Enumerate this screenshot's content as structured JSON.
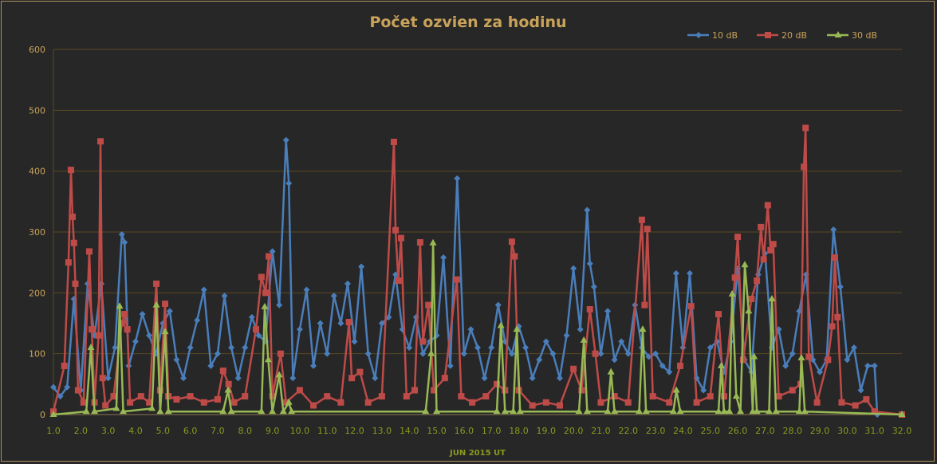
{
  "chart_data": {
    "type": "line",
    "title": "Počet ozvien za hodinu",
    "xlabel": "JUN 2015 UT",
    "ylabel": "",
    "xlim": [
      1.0,
      32.0
    ],
    "ylim": [
      0,
      600
    ],
    "yticks": [
      "0",
      "100",
      "200",
      "300",
      "400",
      "500",
      "600"
    ],
    "xticks": [
      "1.0",
      "2.0",
      "3.0",
      "4.0",
      "5.0",
      "6.0",
      "7.0",
      "8.0",
      "9.0",
      "10.0",
      "11.0",
      "12.0",
      "13.0",
      "14.0",
      "15.0",
      "16.0",
      "17.0",
      "18.0",
      "19.0",
      "20.0",
      "21.0",
      "22.0",
      "23.0",
      "24.0",
      "25.0",
      "26.0",
      "27.0",
      "28.0",
      "29.0",
      "30.0",
      "31.0",
      "32.0"
    ],
    "grid": "horizontal",
    "legend_position": "top-right",
    "series": [
      {
        "name": "10 dB",
        "color": "#4a7ebb",
        "marker": "diamond",
        "points": [
          [
            1.0,
            45
          ],
          [
            1.25,
            30
          ],
          [
            1.5,
            45
          ],
          [
            1.75,
            190
          ],
          [
            2.0,
            40
          ],
          [
            2.25,
            215
          ],
          [
            2.5,
            130
          ],
          [
            2.75,
            215
          ],
          [
            3.0,
            60
          ],
          [
            3.25,
            110
          ],
          [
            3.5,
            296
          ],
          [
            3.6,
            283
          ],
          [
            3.75,
            80
          ],
          [
            4.0,
            120
          ],
          [
            4.25,
            165
          ],
          [
            4.5,
            130
          ],
          [
            4.75,
            100
          ],
          [
            5.0,
            150
          ],
          [
            5.25,
            170
          ],
          [
            5.5,
            90
          ],
          [
            5.75,
            60
          ],
          [
            6.0,
            110
          ],
          [
            6.25,
            155
          ],
          [
            6.5,
            205
          ],
          [
            6.75,
            80
          ],
          [
            7.0,
            100
          ],
          [
            7.25,
            195
          ],
          [
            7.5,
            110
          ],
          [
            7.75,
            60
          ],
          [
            8.0,
            110
          ],
          [
            8.25,
            160
          ],
          [
            8.5,
            130
          ],
          [
            8.75,
            120
          ],
          [
            9.0,
            268
          ],
          [
            9.25,
            180
          ],
          [
            9.5,
            451
          ],
          [
            9.6,
            380
          ],
          [
            9.75,
            60
          ],
          [
            10.0,
            140
          ],
          [
            10.25,
            205
          ],
          [
            10.5,
            80
          ],
          [
            10.75,
            150
          ],
          [
            11.0,
            100
          ],
          [
            11.25,
            195
          ],
          [
            11.5,
            150
          ],
          [
            11.75,
            215
          ],
          [
            12.0,
            120
          ],
          [
            12.25,
            243
          ],
          [
            12.5,
            100
          ],
          [
            12.75,
            60
          ],
          [
            13.0,
            150
          ],
          [
            13.25,
            160
          ],
          [
            13.5,
            230
          ],
          [
            13.75,
            140
          ],
          [
            14.0,
            110
          ],
          [
            14.25,
            160
          ],
          [
            14.5,
            100
          ],
          [
            14.75,
            120
          ],
          [
            15.0,
            130
          ],
          [
            15.25,
            258
          ],
          [
            15.5,
            80
          ],
          [
            15.75,
            388
          ],
          [
            16.0,
            100
          ],
          [
            16.25,
            140
          ],
          [
            16.5,
            110
          ],
          [
            16.75,
            60
          ],
          [
            17.0,
            110
          ],
          [
            17.25,
            180
          ],
          [
            17.5,
            120
          ],
          [
            17.75,
            100
          ],
          [
            18.0,
            145
          ],
          [
            18.25,
            110
          ],
          [
            18.5,
            60
          ],
          [
            18.75,
            90
          ],
          [
            19.0,
            120
          ],
          [
            19.25,
            100
          ],
          [
            19.5,
            60
          ],
          [
            19.75,
            130
          ],
          [
            20.0,
            240
          ],
          [
            20.25,
            140
          ],
          [
            20.5,
            336
          ],
          [
            20.6,
            248
          ],
          [
            20.75,
            210
          ],
          [
            21.0,
            100
          ],
          [
            21.25,
            170
          ],
          [
            21.5,
            90
          ],
          [
            21.75,
            120
          ],
          [
            22.0,
            100
          ],
          [
            22.25,
            180
          ],
          [
            22.5,
            110
          ],
          [
            22.75,
            95
          ],
          [
            23.0,
            100
          ],
          [
            23.25,
            80
          ],
          [
            23.5,
            70
          ],
          [
            23.75,
            232
          ],
          [
            24.0,
            110
          ],
          [
            24.25,
            232
          ],
          [
            24.5,
            60
          ],
          [
            24.75,
            40
          ],
          [
            25.0,
            110
          ],
          [
            25.25,
            120
          ],
          [
            25.5,
            70
          ],
          [
            25.75,
            120
          ],
          [
            26.0,
            240
          ],
          [
            26.25,
            90
          ],
          [
            26.5,
            70
          ],
          [
            26.75,
            230
          ],
          [
            27.0,
            265
          ],
          [
            27.25,
            110
          ],
          [
            27.5,
            140
          ],
          [
            27.75,
            80
          ],
          [
            28.0,
            100
          ],
          [
            28.25,
            170
          ],
          [
            28.5,
            230
          ],
          [
            28.75,
            90
          ],
          [
            29.0,
            70
          ],
          [
            29.25,
            90
          ],
          [
            29.5,
            304
          ],
          [
            29.75,
            210
          ],
          [
            30.0,
            90
          ],
          [
            30.25,
            110
          ],
          [
            30.5,
            40
          ],
          [
            30.75,
            80
          ],
          [
            31.0,
            80
          ],
          [
            31.1,
            0
          ]
        ]
      },
      {
        "name": "20 dB",
        "color": "#be4b48",
        "marker": "square",
        "points": [
          [
            1.0,
            5
          ],
          [
            1.4,
            80
          ],
          [
            1.55,
            250
          ],
          [
            1.64,
            402
          ],
          [
            1.7,
            325
          ],
          [
            1.75,
            282
          ],
          [
            1.8,
            215
          ],
          [
            1.9,
            40
          ],
          [
            2.1,
            20
          ],
          [
            2.31,
            268
          ],
          [
            2.4,
            140
          ],
          [
            2.5,
            20
          ],
          [
            2.65,
            130
          ],
          [
            2.72,
            449
          ],
          [
            2.8,
            60
          ],
          [
            2.9,
            15
          ],
          [
            3.2,
            30
          ],
          [
            3.5,
            150
          ],
          [
            3.6,
            165
          ],
          [
            3.7,
            140
          ],
          [
            3.8,
            20
          ],
          [
            4.2,
            30
          ],
          [
            4.5,
            20
          ],
          [
            4.76,
            215
          ],
          [
            4.9,
            40
          ],
          [
            5.08,
            182
          ],
          [
            5.2,
            30
          ],
          [
            5.5,
            25
          ],
          [
            6.0,
            30
          ],
          [
            6.5,
            20
          ],
          [
            7.0,
            25
          ],
          [
            7.2,
            72
          ],
          [
            7.4,
            50
          ],
          [
            7.6,
            20
          ],
          [
            8.0,
            30
          ],
          [
            8.4,
            140
          ],
          [
            8.6,
            226
          ],
          [
            8.75,
            200
          ],
          [
            8.87,
            260
          ],
          [
            9.0,
            30
          ],
          [
            9.3,
            100
          ],
          [
            9.5,
            20
          ],
          [
            10.0,
            40
          ],
          [
            10.5,
            15
          ],
          [
            11.0,
            30
          ],
          [
            11.5,
            20
          ],
          [
            11.8,
            152
          ],
          [
            11.9,
            60
          ],
          [
            12.2,
            70
          ],
          [
            12.5,
            20
          ],
          [
            13.0,
            30
          ],
          [
            13.44,
            448
          ],
          [
            13.5,
            303
          ],
          [
            13.6,
            220
          ],
          [
            13.7,
            290
          ],
          [
            13.9,
            30
          ],
          [
            14.2,
            40
          ],
          [
            14.4,
            283
          ],
          [
            14.5,
            120
          ],
          [
            14.7,
            180
          ],
          [
            14.9,
            40
          ],
          [
            15.3,
            60
          ],
          [
            15.74,
            222
          ],
          [
            15.9,
            30
          ],
          [
            16.3,
            20
          ],
          [
            16.8,
            30
          ],
          [
            17.2,
            50
          ],
          [
            17.5,
            40
          ],
          [
            17.75,
            284
          ],
          [
            17.85,
            260
          ],
          [
            18.0,
            40
          ],
          [
            18.5,
            15
          ],
          [
            19.0,
            20
          ],
          [
            19.5,
            15
          ],
          [
            20.0,
            75
          ],
          [
            20.3,
            40
          ],
          [
            20.6,
            173
          ],
          [
            20.8,
            100
          ],
          [
            21.0,
            20
          ],
          [
            21.5,
            30
          ],
          [
            22.0,
            20
          ],
          [
            22.5,
            320
          ],
          [
            22.6,
            180
          ],
          [
            22.7,
            305
          ],
          [
            22.9,
            30
          ],
          [
            23.5,
            20
          ],
          [
            23.9,
            80
          ],
          [
            24.3,
            178
          ],
          [
            24.5,
            20
          ],
          [
            25.0,
            30
          ],
          [
            25.3,
            165
          ],
          [
            25.5,
            30
          ],
          [
            25.9,
            225
          ],
          [
            26.0,
            292
          ],
          [
            26.2,
            90
          ],
          [
            26.5,
            190
          ],
          [
            26.7,
            220
          ],
          [
            26.85,
            308
          ],
          [
            26.95,
            255
          ],
          [
            27.1,
            344
          ],
          [
            27.2,
            270
          ],
          [
            27.3,
            280
          ],
          [
            27.5,
            30
          ],
          [
            28.0,
            40
          ],
          [
            28.3,
            50
          ],
          [
            28.42,
            407
          ],
          [
            28.48,
            471
          ],
          [
            28.6,
            95
          ],
          [
            28.9,
            20
          ],
          [
            29.3,
            90
          ],
          [
            29.45,
            145
          ],
          [
            29.55,
            258
          ],
          [
            29.65,
            160
          ],
          [
            29.8,
            20
          ],
          [
            30.3,
            15
          ],
          [
            30.7,
            25
          ],
          [
            31.0,
            5
          ],
          [
            32.0,
            0
          ]
        ]
      },
      {
        "name": "30 dB",
        "color": "#98b954",
        "marker": "triangle",
        "points": [
          [
            1.0,
            0
          ],
          [
            2.2,
            5
          ],
          [
            2.37,
            110
          ],
          [
            2.5,
            5
          ],
          [
            3.3,
            10
          ],
          [
            3.42,
            178
          ],
          [
            3.55,
            5
          ],
          [
            4.6,
            10
          ],
          [
            4.76,
            180
          ],
          [
            4.9,
            5
          ],
          [
            5.08,
            136
          ],
          [
            5.2,
            5
          ],
          [
            7.2,
            5
          ],
          [
            7.38,
            40
          ],
          [
            7.5,
            5
          ],
          [
            8.6,
            5
          ],
          [
            8.72,
            177
          ],
          [
            8.85,
            90
          ],
          [
            9.0,
            5
          ],
          [
            9.25,
            65
          ],
          [
            9.4,
            5
          ],
          [
            9.6,
            20
          ],
          [
            9.7,
            5
          ],
          [
            14.6,
            5
          ],
          [
            14.8,
            100
          ],
          [
            14.87,
            282
          ],
          [
            15.0,
            5
          ],
          [
            17.2,
            5
          ],
          [
            17.35,
            146
          ],
          [
            17.5,
            5
          ],
          [
            17.8,
            5
          ],
          [
            17.93,
            140
          ],
          [
            18.05,
            5
          ],
          [
            20.2,
            5
          ],
          [
            20.38,
            122
          ],
          [
            20.5,
            5
          ],
          [
            21.25,
            5
          ],
          [
            21.37,
            70
          ],
          [
            21.5,
            5
          ],
          [
            22.4,
            5
          ],
          [
            22.53,
            140
          ],
          [
            22.65,
            5
          ],
          [
            23.65,
            5
          ],
          [
            23.76,
            40
          ],
          [
            23.9,
            5
          ],
          [
            25.3,
            5
          ],
          [
            25.4,
            80
          ],
          [
            25.5,
            5
          ],
          [
            25.7,
            5
          ],
          [
            25.8,
            198
          ],
          [
            25.95,
            30
          ],
          [
            26.1,
            5
          ],
          [
            26.26,
            246
          ],
          [
            26.4,
            170
          ],
          [
            26.55,
            5
          ],
          [
            26.6,
            95
          ],
          [
            26.7,
            5
          ],
          [
            27.15,
            5
          ],
          [
            27.25,
            190
          ],
          [
            27.4,
            5
          ],
          [
            28.25,
            5
          ],
          [
            28.33,
            93
          ],
          [
            28.45,
            5
          ],
          [
            32.0,
            0
          ]
        ]
      }
    ]
  }
}
